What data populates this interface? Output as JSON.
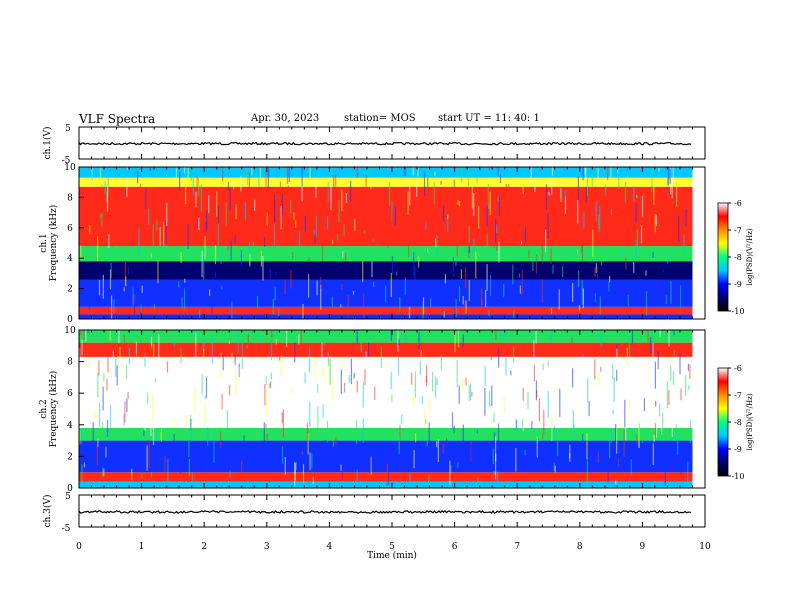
{
  "header": {
    "title": "VLF Spectra",
    "date": "Apr. 30, 2023",
    "station": "station= MOS",
    "start": "start UT =   11: 40: 1"
  },
  "colors": {
    "scale": [
      "#000000",
      "#00006e",
      "#0000ff",
      "#00c8ff",
      "#00ff7f",
      "#ffff00",
      "#ff8c00",
      "#ff0000",
      "#ffffff"
    ],
    "background": "#ffffff"
  },
  "chart_data": [
    {
      "type": "line",
      "name": "ch1-waveform",
      "ylabel": "ch.1(V)",
      "ylim": [
        -5,
        5
      ],
      "yticks": [
        "5",
        "-5"
      ],
      "xlim": [
        0,
        10
      ],
      "series": [
        {
          "values_description_level": -0.2
        }
      ]
    },
    {
      "type": "heatmap",
      "name": "ch1-spectrogram",
      "ylabel": "ch.1\nFrequency (kHz)",
      "ylabel_lines": [
        "ch.1",
        "Frequency (kHz)"
      ],
      "ylim": [
        0,
        10
      ],
      "yticks": [
        "0",
        "2",
        "4",
        "6",
        "8",
        "10"
      ],
      "xlim": [
        0,
        9.8
      ],
      "colorbar": {
        "label": "log(PSD)(V²/Hz)",
        "ticks": [
          "-6",
          "-7",
          "-8",
          "-9",
          "-10"
        ],
        "range": [
          -10,
          -6
        ]
      },
      "bands": [
        {
          "f": [
            0.0,
            0.3
          ],
          "level": "blue"
        },
        {
          "f": [
            0.3,
            0.8
          ],
          "level": "red"
        },
        {
          "f": [
            0.8,
            2.6
          ],
          "level": "blue"
        },
        {
          "f": [
            2.6,
            3.8
          ],
          "level": "darkblue"
        },
        {
          "f": [
            3.8,
            4.8
          ],
          "level": "green"
        },
        {
          "f": [
            4.8,
            8.7
          ],
          "level": "red"
        },
        {
          "f": [
            8.7,
            9.3
          ],
          "level": "yellow"
        },
        {
          "f": [
            9.3,
            10.0
          ],
          "level": "cyan"
        }
      ]
    },
    {
      "type": "heatmap",
      "name": "ch2-spectrogram",
      "ylabel": "ch.2\nFrequency (kHz)",
      "ylabel_lines": [
        "ch.2",
        "Frequency (kHz)"
      ],
      "ylim": [
        0,
        10
      ],
      "yticks": [
        "0",
        "2",
        "4",
        "6",
        "8",
        "10"
      ],
      "xlim": [
        0,
        9.8
      ],
      "colorbar": {
        "label": "log(PSD)(V²/Hz)",
        "ticks": [
          "-6",
          "-7",
          "-8",
          "-9",
          "-10"
        ],
        "range": [
          -10,
          -6
        ]
      },
      "bands": [
        {
          "f": [
            0.0,
            0.4
          ],
          "level": "cyan"
        },
        {
          "f": [
            0.4,
            1.0
          ],
          "level": "red"
        },
        {
          "f": [
            1.0,
            3.0
          ],
          "level": "blue"
        },
        {
          "f": [
            3.0,
            3.8
          ],
          "level": "green"
        },
        {
          "f": [
            3.8,
            8.3
          ],
          "level": "white"
        },
        {
          "f": [
            8.3,
            9.2
          ],
          "level": "red"
        },
        {
          "f": [
            9.2,
            10.0
          ],
          "level": "green"
        }
      ]
    },
    {
      "type": "line",
      "name": "ch3-waveform",
      "ylabel": "ch.3(V)",
      "ylim": [
        -5,
        5
      ],
      "yticks": [
        "5",
        "-5"
      ],
      "xlim": [
        0,
        10
      ],
      "xlabel": "Time (min)",
      "xticks": [
        "0",
        "1",
        "2",
        "3",
        "4",
        "5",
        "6",
        "7",
        "8",
        "9",
        "10"
      ],
      "series": [
        {
          "values_description_level": -0.3
        }
      ]
    }
  ]
}
